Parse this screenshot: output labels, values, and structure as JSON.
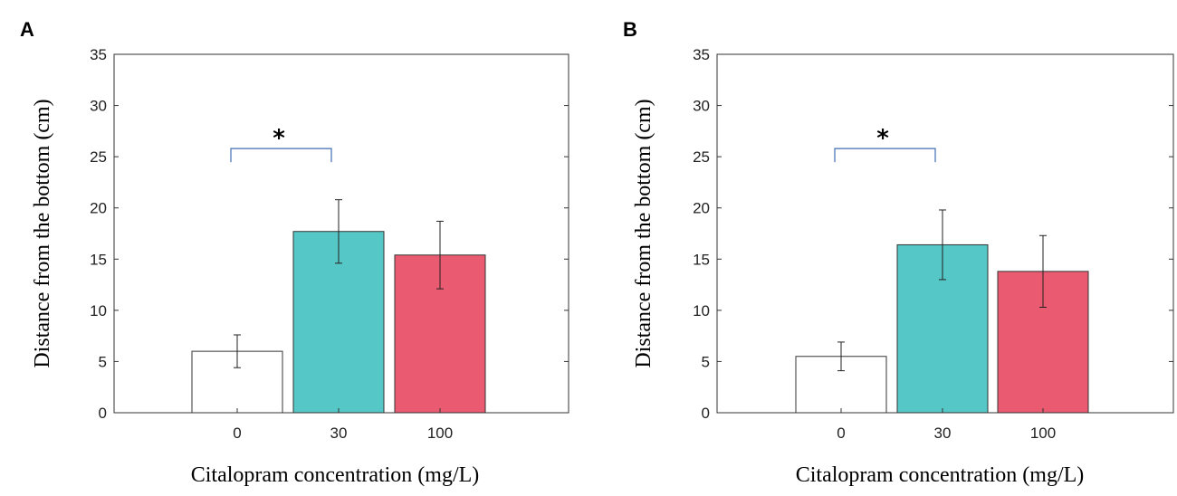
{
  "chart_data": [
    {
      "type": "bar",
      "panel_label": "A",
      "categories": [
        "0",
        "30",
        "100"
      ],
      "values": [
        6.0,
        17.7,
        15.4
      ],
      "errors": [
        1.6,
        3.1,
        3.3
      ],
      "colors": [
        "#ffffff",
        "#55c7c6",
        "#ea5a70"
      ],
      "xlabel": "Citalopram concentration (mg/L)",
      "ylabel": "Distance from the bottom (cm)",
      "ylim": [
        0,
        35
      ],
      "yticks": [
        "0",
        "5",
        "10",
        "15",
        "20",
        "25",
        "30",
        "35"
      ],
      "significance": {
        "from": "0",
        "to": "30",
        "label": "*",
        "y": 25.0
      }
    },
    {
      "type": "bar",
      "panel_label": "B",
      "categories": [
        "0",
        "30",
        "100"
      ],
      "values": [
        5.5,
        16.4,
        13.8
      ],
      "errors": [
        1.4,
        3.4,
        3.5
      ],
      "colors": [
        "#ffffff",
        "#55c7c6",
        "#ea5a70"
      ],
      "xlabel": "Citalopram concentration (mg/L)",
      "ylabel": "Distance from the bottom (cm)",
      "ylim": [
        0,
        35
      ],
      "yticks": [
        "0",
        "5",
        "10",
        "15",
        "20",
        "25",
        "30",
        "35"
      ],
      "significance": {
        "from": "0",
        "to": "30",
        "label": "*",
        "y": 25.0
      }
    }
  ]
}
